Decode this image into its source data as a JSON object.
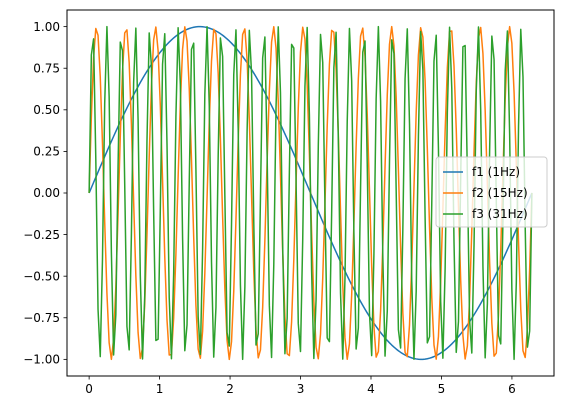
{
  "chart_data": {
    "type": "line",
    "title": "",
    "xlabel": "",
    "ylabel": "",
    "xlim": [
      -0.314,
      6.597
    ],
    "ylim": [
      -1.1,
      1.1
    ],
    "x_ticks": [
      0,
      1,
      2,
      3,
      4,
      5,
      6
    ],
    "y_ticks": [
      -1.0,
      -0.75,
      -0.5,
      -0.25,
      0.0,
      0.25,
      0.5,
      0.75,
      1.0
    ],
    "x_tick_labels": [
      "0",
      "1",
      "2",
      "3",
      "4",
      "5",
      "6"
    ],
    "y_tick_labels": [
      "−1.00",
      "−0.75",
      "−0.50",
      "−0.25",
      "0.00",
      "0.25",
      "0.50",
      "0.75",
      "1.00"
    ],
    "x_range": [
      0,
      6.2832
    ],
    "n_points": 200,
    "grid": false,
    "legend": {
      "placement": "center-right"
    },
    "series": [
      {
        "name": "f1 (1Hz)",
        "function": "sin",
        "frequency": 1,
        "color": "#1f77b4"
      },
      {
        "name": "f2 (15Hz)",
        "function": "sin",
        "frequency": 15,
        "color": "#ff7f0e"
      },
      {
        "name": "f3 (31Hz)",
        "function": "sin",
        "frequency": 31,
        "color": "#2ca02c"
      }
    ]
  }
}
